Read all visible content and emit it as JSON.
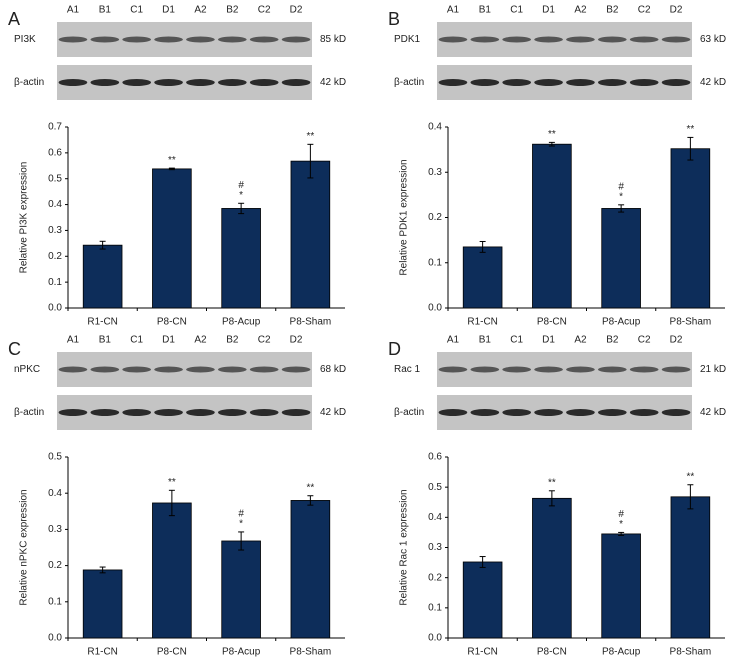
{
  "chart_data": [
    {
      "type": "bar",
      "panel_label": "A",
      "color": "#0d2d5a",
      "blot": {
        "lanes": [
          "A1",
          "B1",
          "C1",
          "D1",
          "A2",
          "B2",
          "C2",
          "D2"
        ],
        "rows": [
          {
            "protein": "PI3K",
            "size": "85 kD"
          },
          {
            "protein": "β-actin",
            "size": "42 kD"
          }
        ]
      },
      "y_label": "Relative PI3K expression",
      "categories": [
        "R1-CN",
        "P8-CN",
        "P8-Acup",
        "P8-Sham"
      ],
      "values": [
        0.243,
        0.538,
        0.385,
        0.568
      ],
      "errors": [
        0.015,
        0.003,
        0.02,
        0.065
      ],
      "significance": [
        [],
        [
          "**"
        ],
        [
          "#",
          "*"
        ],
        [
          "**"
        ]
      ],
      "ylim": [
        0,
        0.7
      ],
      "yticks": [
        {
          "value": 0,
          "label": "0.0"
        },
        0.1,
        0.2,
        0.3,
        0.4,
        0.5,
        0.6,
        0.7
      ]
    },
    {
      "type": "bar",
      "panel_label": "B",
      "color": "#0d2d5a",
      "blot": {
        "lanes": [
          "A1",
          "B1",
          "C1",
          "D1",
          "A2",
          "B2",
          "C2",
          "D2"
        ],
        "rows": [
          {
            "protein": "PDK1",
            "size": "63 kD"
          },
          {
            "protein": "β-actin",
            "size": "42 kD"
          }
        ]
      },
      "y_label": "Relative PDK1 expression",
      "categories": [
        "R1-CN",
        "P8-CN",
        "P8-Acup",
        "P8-Sham"
      ],
      "values": [
        0.135,
        0.362,
        0.22,
        0.352
      ],
      "errors": [
        0.012,
        0.004,
        0.008,
        0.025
      ],
      "significance": [
        [],
        [
          "**"
        ],
        [
          "#",
          "*"
        ],
        [
          "**"
        ]
      ],
      "ylim": [
        0,
        0.4
      ],
      "yticks": [
        {
          "value": 0,
          "label": "0.0"
        },
        0.1,
        0.2,
        0.3,
        0.4
      ]
    },
    {
      "type": "bar",
      "panel_label": "C",
      "color": "#0d2d5a",
      "blot": {
        "lanes": [
          "A1",
          "B1",
          "C1",
          "D1",
          "A2",
          "B2",
          "C2",
          "D2"
        ],
        "rows": [
          {
            "protein": "nPKC",
            "size": "68 kD"
          },
          {
            "protein": "β-actin",
            "size": "42 kD"
          }
        ]
      },
      "y_label": "Relative nPKC expression",
      "categories": [
        "R1-CN",
        "P8-CN",
        "P8-Acup",
        "P8-Sham"
      ],
      "values": [
        0.188,
        0.373,
        0.268,
        0.38
      ],
      "errors": [
        0.008,
        0.035,
        0.025,
        0.013
      ],
      "significance": [
        [],
        [
          "**"
        ],
        [
          "#",
          "*"
        ],
        [
          "**"
        ]
      ],
      "ylim": [
        0,
        0.5
      ],
      "yticks": [
        {
          "value": 0,
          "label": "0.0"
        },
        0.1,
        0.2,
        0.3,
        0.4,
        0.5
      ]
    },
    {
      "type": "bar",
      "panel_label": "D",
      "color": "#0d2d5a",
      "blot": {
        "lanes": [
          "A1",
          "B1",
          "C1",
          "D1",
          "A2",
          "B2",
          "C2",
          "D2"
        ],
        "rows": [
          {
            "protein": "Rac 1",
            "size": "21 kD"
          },
          {
            "protein": "β-actin",
            "size": "42 kD"
          }
        ]
      },
      "y_label": "Relative Rac 1 expression",
      "categories": [
        "R1-CN",
        "P8-CN",
        "P8-Acup",
        "P8-Sham"
      ],
      "values": [
        0.252,
        0.463,
        0.345,
        0.468
      ],
      "errors": [
        0.018,
        0.025,
        0.005,
        0.04
      ],
      "significance": [
        [],
        [
          "**"
        ],
        [
          "#",
          "*"
        ],
        [
          "**"
        ]
      ],
      "ylim": [
        0,
        0.6
      ],
      "yticks": [
        {
          "value": 0,
          "label": "0.0"
        },
        0.1,
        0.2,
        0.3,
        0.4,
        0.5,
        0.6
      ]
    }
  ]
}
